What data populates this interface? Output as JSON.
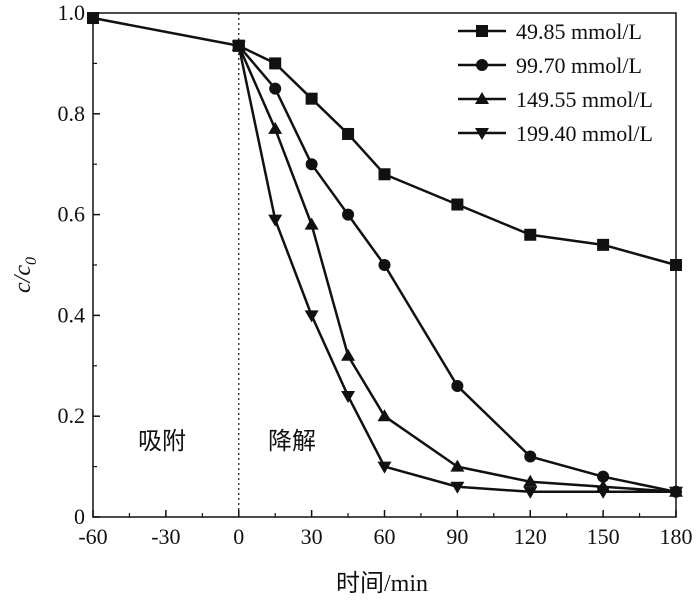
{
  "chart_data": {
    "type": "line",
    "title": "",
    "xlabel": "时间/min",
    "ylabel_main": "c/c",
    "ylabel_sub": "0",
    "xlim": [
      -60,
      180
    ],
    "ylim": [
      0,
      1.0
    ],
    "xticks": [
      -60,
      -30,
      0,
      30,
      60,
      90,
      120,
      150,
      180
    ],
    "yticks": [
      0,
      0.2,
      0.4,
      0.6,
      0.8,
      1.0
    ],
    "ytick_labels": [
      "0",
      "0.2",
      "0.4",
      "0.6",
      "0.8",
      "1.0"
    ],
    "grid": false,
    "legend_position": "top-right",
    "annotations": {
      "adsorption": "吸附",
      "degradation": "降解"
    },
    "shared_adsorption": {
      "x": [
        -60,
        0
      ],
      "y": [
        0.99,
        0.935
      ]
    },
    "series": [
      {
        "name": "49.85 mmol/L",
        "marker": "square",
        "x": [
          0,
          15,
          30,
          45,
          60,
          90,
          120,
          150,
          180
        ],
        "y": [
          0.935,
          0.9,
          0.83,
          0.76,
          0.68,
          0.62,
          0.56,
          0.54,
          0.5
        ]
      },
      {
        "name": "99.70 mmol/L",
        "marker": "circle",
        "x": [
          0,
          15,
          30,
          45,
          60,
          90,
          120,
          150,
          180
        ],
        "y": [
          0.935,
          0.85,
          0.7,
          0.6,
          0.5,
          0.26,
          0.12,
          0.08,
          0.05
        ]
      },
      {
        "name": "149.55 mmol/L",
        "marker": "triangle-up",
        "x": [
          0,
          15,
          30,
          45,
          60,
          90,
          120,
          150,
          180
        ],
        "y": [
          0.935,
          0.77,
          0.58,
          0.32,
          0.2,
          0.1,
          0.07,
          0.06,
          0.05
        ]
      },
      {
        "name": "199.40 mmol/L",
        "marker": "triangle-down",
        "x": [
          0,
          15,
          30,
          45,
          60,
          90,
          120,
          150,
          180
        ],
        "y": [
          0.935,
          0.59,
          0.4,
          0.24,
          0.1,
          0.06,
          0.05,
          0.05,
          0.05
        ]
      }
    ]
  }
}
